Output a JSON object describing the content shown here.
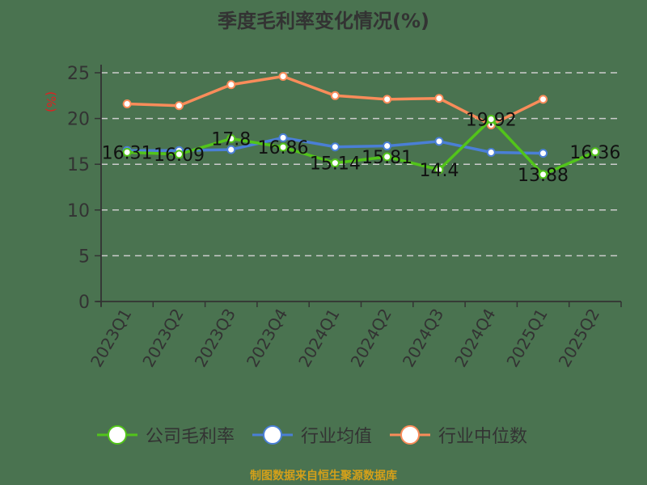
{
  "chart_data": {
    "type": "line",
    "title": "季度毛利率变化情况(%)",
    "ylabel": "(%)",
    "xlabel": "",
    "ylim": [
      0,
      25
    ],
    "yticks": [
      0,
      5,
      10,
      15,
      20,
      25
    ],
    "grid": "horizontal dashed",
    "legend_position": "bottom",
    "categories": [
      "2023Q1",
      "2023Q2",
      "2023Q3",
      "2023Q4",
      "2024Q1",
      "2024Q2",
      "2024Q3",
      "2024Q4",
      "2025Q1",
      "2025Q2"
    ],
    "series": [
      {
        "name": "公司毛利率",
        "color": "#52c41a",
        "labeled": true,
        "values": [
          16.31,
          16.09,
          17.8,
          16.86,
          15.14,
          15.81,
          14.4,
          19.92,
          13.88,
          16.36
        ]
      },
      {
        "name": "行业均值",
        "color": "#4a7fd6",
        "labeled": false,
        "values": [
          16.5,
          16.5,
          16.6,
          17.9,
          16.9,
          17.0,
          17.5,
          16.3,
          16.2,
          null
        ]
      },
      {
        "name": "行业中位数",
        "color": "#f98c5a",
        "labeled": false,
        "values": [
          21.6,
          21.4,
          23.7,
          24.6,
          22.5,
          22.1,
          22.2,
          19.3,
          22.1,
          null
        ]
      }
    ]
  },
  "title": "季度毛利率变化情况(%)",
  "y_unit": "(%)",
  "legend": [
    "公司毛利率",
    "行业均值",
    "行业中位数"
  ],
  "source_note": "制图数据来自恒生聚源数据库"
}
